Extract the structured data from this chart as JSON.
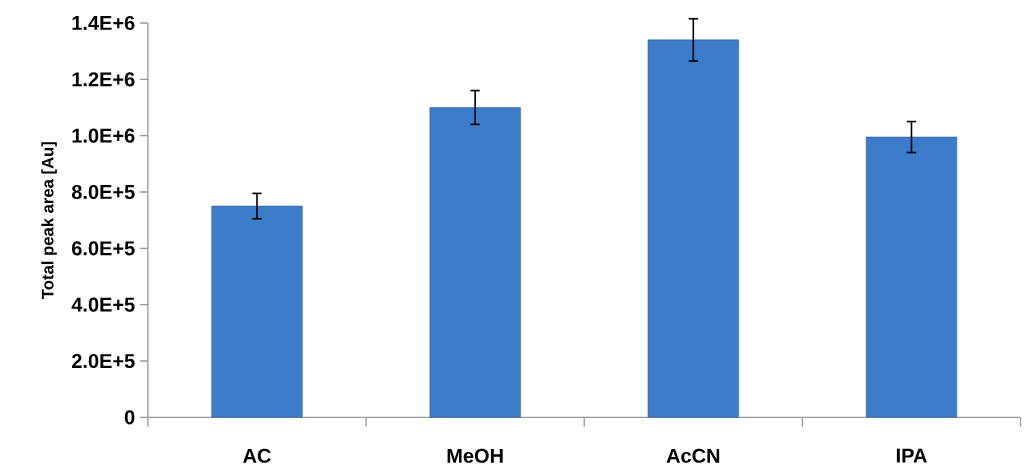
{
  "chart_data": {
    "type": "bar",
    "ylabel": "Total peak area [Au]",
    "categories": [
      "AC",
      "MeOH",
      "AcCN",
      "IPA"
    ],
    "values": [
      750000,
      1100000,
      1340000,
      995000
    ],
    "errors": [
      45000,
      60000,
      75000,
      55000
    ],
    "color": "#3d7cc9",
    "ylim": [
      0,
      1400000
    ],
    "yticks": [
      {
        "value": 0,
        "label": "0"
      },
      {
        "value": 200000,
        "label": "2.0E+5"
      },
      {
        "value": 400000,
        "label": "4.0E+5"
      },
      {
        "value": 600000,
        "label": "6.0E+5"
      },
      {
        "value": 800000,
        "label": "8.0E+5"
      },
      {
        "value": 1000000,
        "label": "1.0E+6"
      },
      {
        "value": 1200000,
        "label": "1.2E+6"
      },
      {
        "value": 1400000,
        "label": "1.4E+6"
      }
    ],
    "grid": false
  }
}
